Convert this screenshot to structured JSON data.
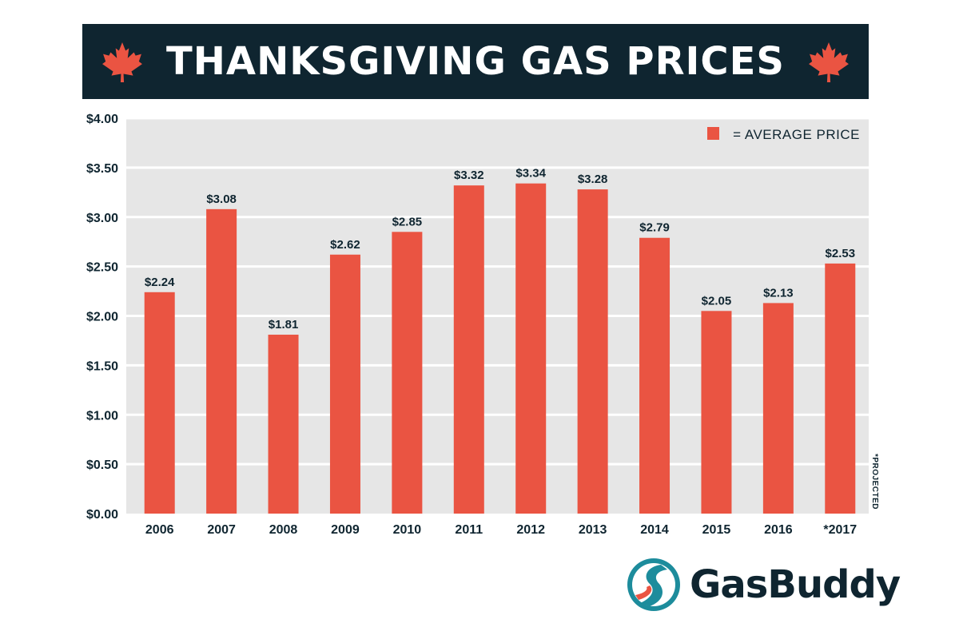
{
  "header": {
    "title": "THANKSGIVING GAS PRICES",
    "icon": "maple-leaf-icon"
  },
  "colors": {
    "bar": "#ea5442",
    "banner": "#0f2530",
    "plot_bg": "#e6e6e6",
    "brand_teal": "#1d8c9c"
  },
  "chart_data": {
    "type": "bar",
    "title": "THANKSGIVING GAS PRICES",
    "categories": [
      "2006",
      "2007",
      "2008",
      "2009",
      "2010",
      "2011",
      "2012",
      "2013",
      "2014",
      "2015",
      "2016",
      "*2017"
    ],
    "values": [
      2.24,
      3.08,
      1.81,
      2.62,
      2.85,
      3.32,
      3.34,
      3.28,
      2.79,
      2.05,
      2.13,
      2.53
    ],
    "data_labels": [
      "$2.24",
      "$3.08",
      "$1.81",
      "$2.62",
      "$2.85",
      "$3.32",
      "$3.34",
      "$3.28",
      "$2.79",
      "$2.05",
      "$2.13",
      "$2.53"
    ],
    "ylim": [
      0,
      4
    ],
    "yticks": [
      0,
      0.5,
      1,
      1.5,
      2,
      2.5,
      3,
      3.5,
      4
    ],
    "ytick_labels": [
      "$0.00",
      "$0.50",
      "$1.00",
      "$1.50",
      "$2.00",
      "$2.50",
      "$3.00",
      "$3.50",
      "$4.00"
    ],
    "legend": {
      "label": "= AVERAGE PRICE",
      "position": "top-right"
    },
    "grid": true,
    "annotation": "*PROJECTED",
    "xlabel": "",
    "ylabel": ""
  },
  "brand": {
    "name": "GasBuddy"
  }
}
